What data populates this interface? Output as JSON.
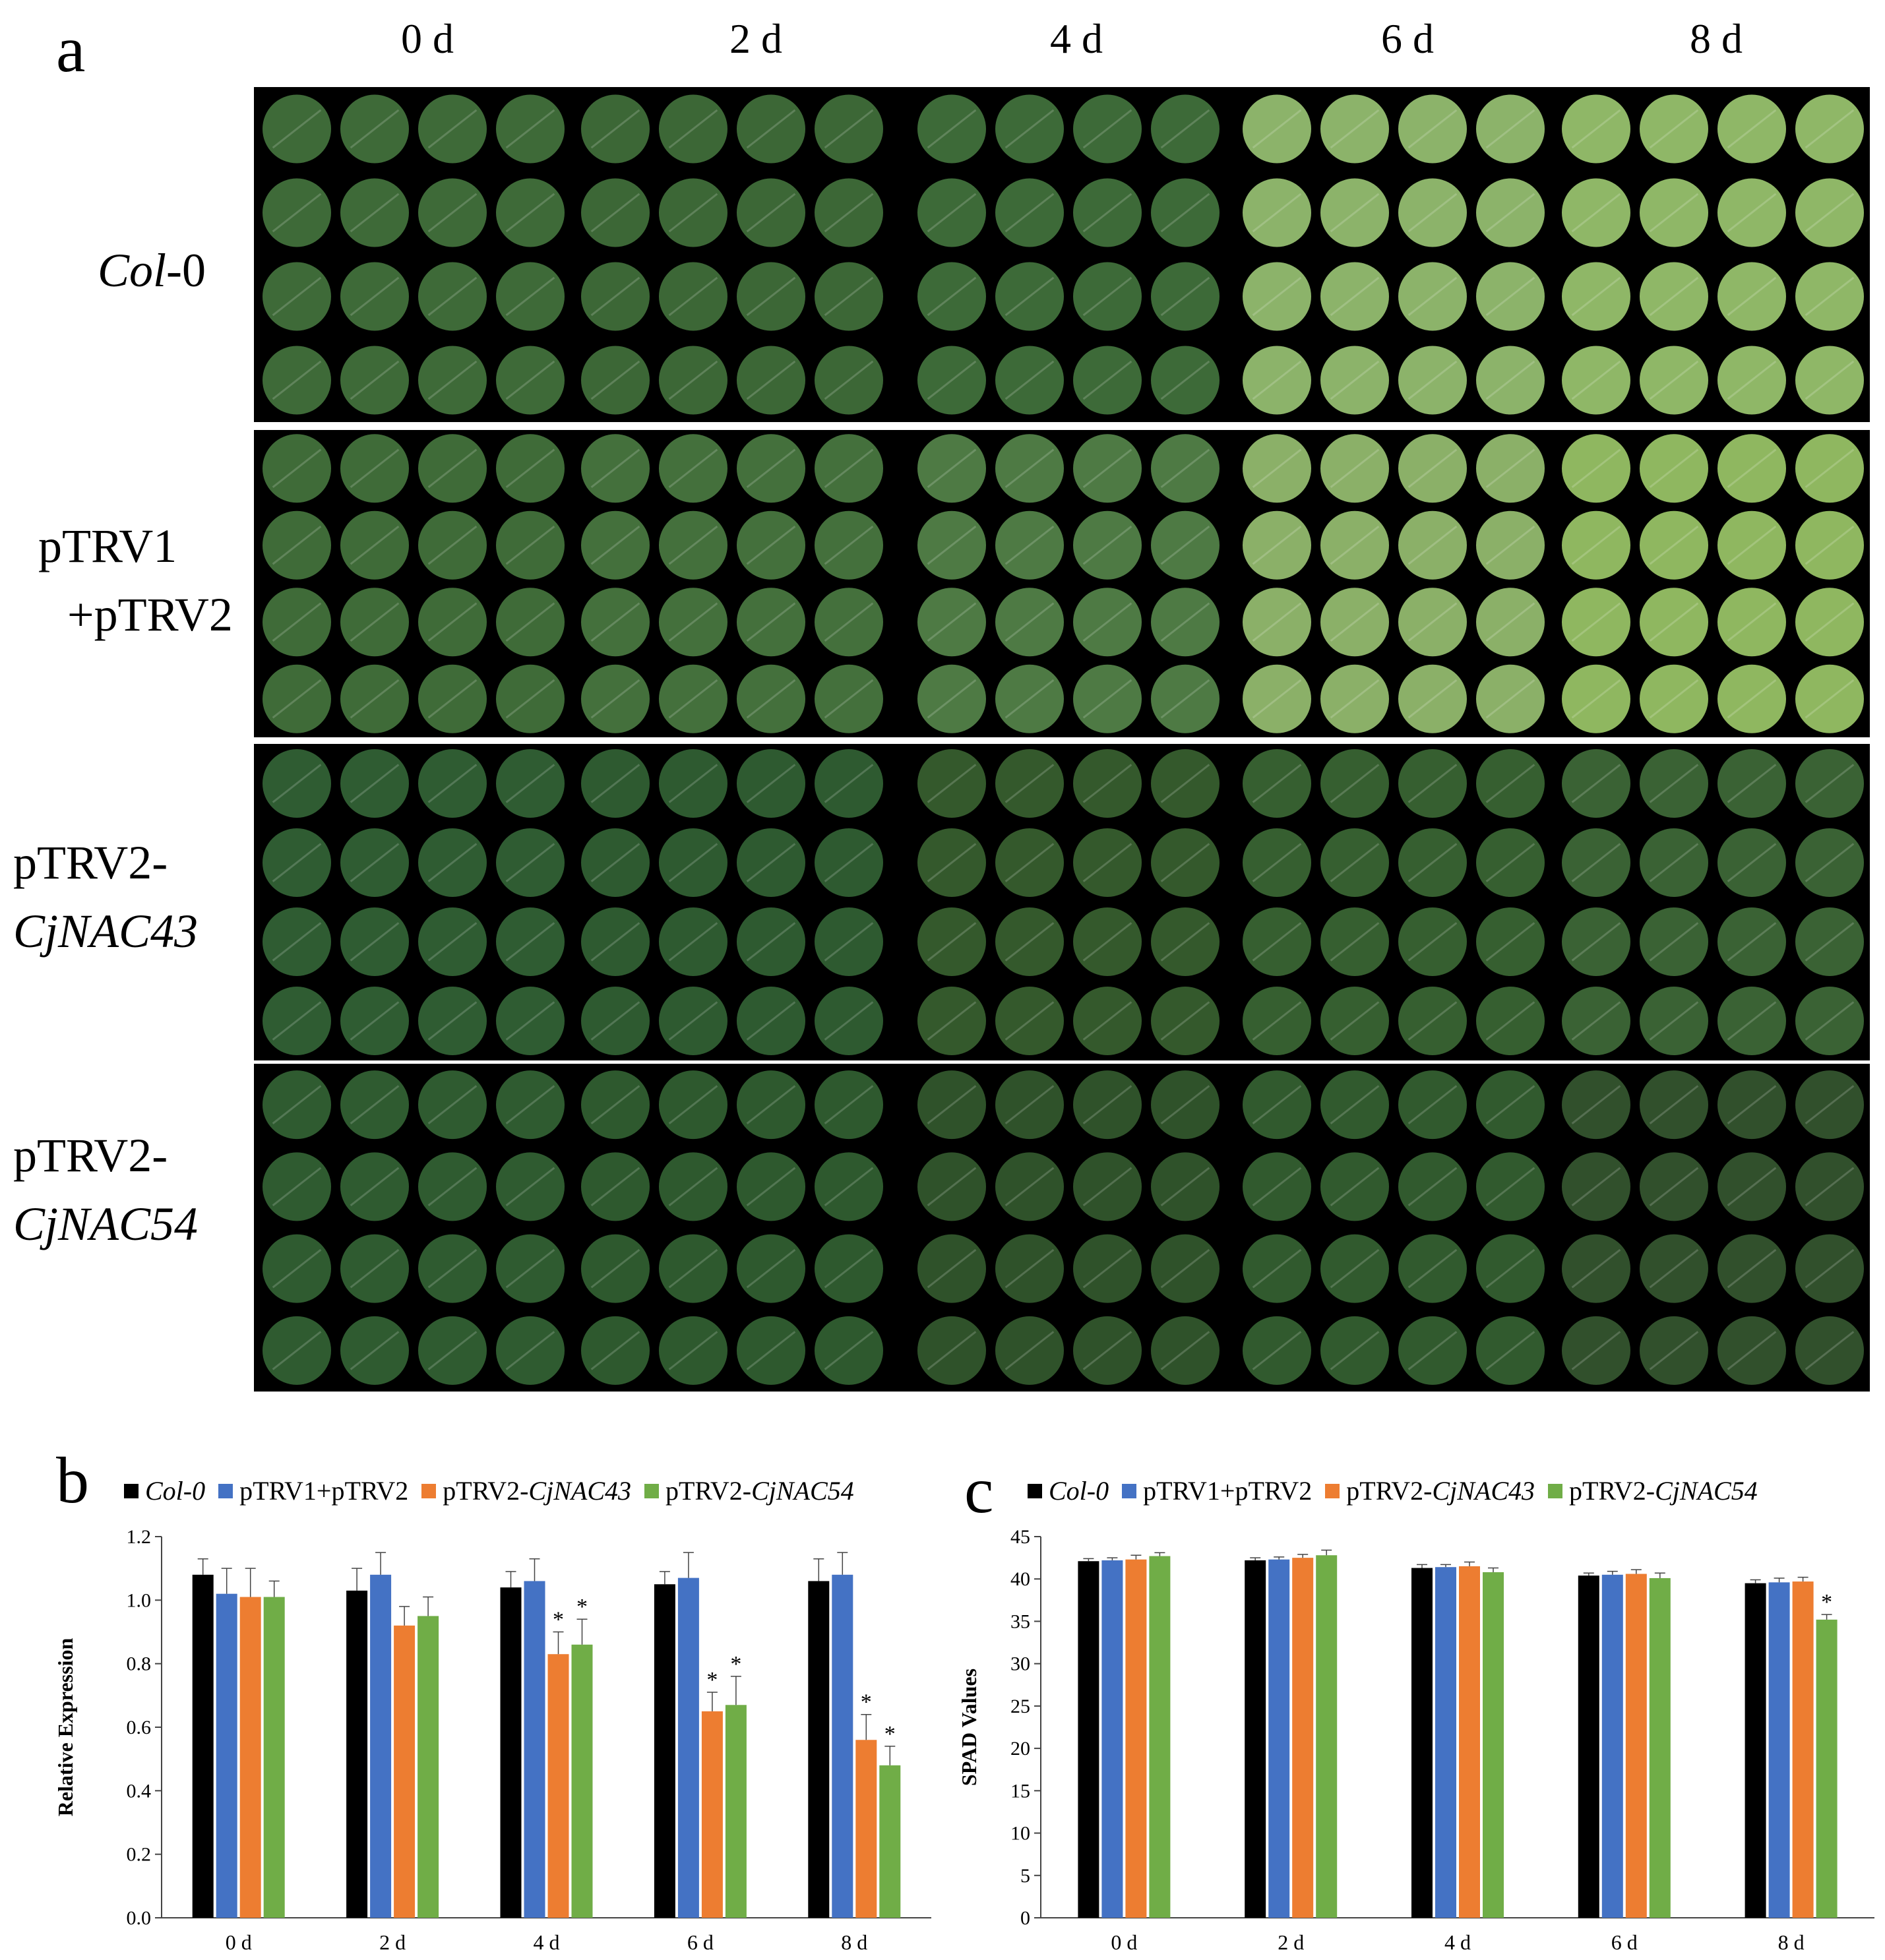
{
  "panel_a": {
    "letter": "a",
    "day_labels": [
      "0 d",
      "2 d",
      "4 d",
      "6 d",
      "8 d"
    ],
    "rows": [
      {
        "parts": [
          {
            "text": "Col",
            "italic": true
          },
          {
            "text": "-0",
            "italic": false
          }
        ]
      },
      {
        "parts": [
          {
            "text": "pTRV1",
            "italic": false
          },
          {
            "text": "\n+pTRV2",
            "italic": false
          }
        ]
      },
      {
        "parts": [
          {
            "text": "pTRV2-",
            "italic": false
          },
          {
            "text": "\nCjNAC43",
            "italic": true
          }
        ]
      },
      {
        "parts": [
          {
            "text": "pTRV2-",
            "italic": false
          },
          {
            "text": "\nCjNAC54",
            "italic": true
          }
        ]
      }
    ],
    "leaf_tint": [
      [
        "#3e6a38",
        "#3c6736",
        "#3d6a38",
        "#8cb36a",
        "#8fb767"
      ],
      [
        "#3f6b38",
        "#44703c",
        "#4e7a44",
        "#8bb068",
        "#8fb760"
      ],
      [
        "#2f5c32",
        "#2e5a30",
        "#34592c",
        "#365f30",
        "#3a6234"
      ],
      [
        "#2f5b30",
        "#2e592e",
        "#2f522a",
        "#315a2e",
        "#31502c"
      ]
    ]
  },
  "legend": {
    "items": [
      {
        "label": "Col-0",
        "italic": true,
        "color": "#000000"
      },
      {
        "label": "pTRV1+pTRV2",
        "italic": false,
        "color": "#4472c4"
      },
      {
        "label_plain": "pTRV2-",
        "label_italic": "CjNAC43",
        "color": "#ed7d31"
      },
      {
        "label_plain": "pTRV2-",
        "label_italic": "CjNAC54",
        "color": "#70ad47"
      }
    ]
  },
  "chart_data": [
    {
      "panel_letter": "b",
      "type": "bar",
      "ylabel": "Relative Expression",
      "xlabel": "",
      "categories": [
        "0 d",
        "2 d",
        "4 d",
        "6 d",
        "8 d"
      ],
      "ylim": [
        0,
        1.2
      ],
      "yticks": [
        "0.0",
        "0.2",
        "0.4",
        "0.6",
        "0.8",
        "1.0",
        "1.2"
      ],
      "series": [
        {
          "name": "Col-0",
          "color": "#000000",
          "values": [
            1.08,
            1.03,
            1.04,
            1.05,
            1.06
          ],
          "errors": [
            0.05,
            0.07,
            0.05,
            0.04,
            0.07
          ]
        },
        {
          "name": "pTRV1+pTRV2",
          "color": "#4472c4",
          "values": [
            1.02,
            1.08,
            1.06,
            1.07,
            1.08
          ],
          "errors": [
            0.08,
            0.07,
            0.07,
            0.08,
            0.07
          ]
        },
        {
          "name": "pTRV2-CjNAC43",
          "color": "#ed7d31",
          "values": [
            1.01,
            0.92,
            0.83,
            0.65,
            0.56
          ],
          "errors": [
            0.09,
            0.06,
            0.07,
            0.06,
            0.08
          ]
        },
        {
          "name": "pTRV2-CjNAC54",
          "color": "#70ad47",
          "values": [
            1.01,
            0.95,
            0.86,
            0.67,
            0.48
          ],
          "errors": [
            0.05,
            0.06,
            0.08,
            0.09,
            0.06
          ]
        }
      ],
      "significance": [
        {
          "series": 2,
          "category": 2,
          "label": "*"
        },
        {
          "series": 3,
          "category": 2,
          "label": "*"
        },
        {
          "series": 2,
          "category": 3,
          "label": "*"
        },
        {
          "series": 3,
          "category": 3,
          "label": "*"
        },
        {
          "series": 2,
          "category": 4,
          "label": "*"
        },
        {
          "series": 3,
          "category": 4,
          "label": "*"
        }
      ]
    },
    {
      "panel_letter": "c",
      "type": "bar",
      "ylabel": "SPAD Values",
      "xlabel": "",
      "categories": [
        "0 d",
        "2 d",
        "4 d",
        "6 d",
        "8 d"
      ],
      "ylim": [
        0,
        45
      ],
      "yticks": [
        "0",
        "5",
        "10",
        "15",
        "20",
        "25",
        "30",
        "35",
        "40",
        "45"
      ],
      "series": [
        {
          "name": "Col-0",
          "color": "#000000",
          "values": [
            42.1,
            42.2,
            41.3,
            40.4,
            39.5
          ],
          "errors": [
            0.3,
            0.3,
            0.4,
            0.3,
            0.4
          ]
        },
        {
          "name": "pTRV1+pTRV2",
          "color": "#4472c4",
          "values": [
            42.2,
            42.3,
            41.4,
            40.5,
            39.6
          ],
          "errors": [
            0.3,
            0.3,
            0.3,
            0.4,
            0.5
          ]
        },
        {
          "name": "pTRV2-CjNAC43",
          "color": "#ed7d31",
          "values": [
            42.3,
            42.5,
            41.5,
            40.6,
            39.7
          ],
          "errors": [
            0.5,
            0.4,
            0.5,
            0.5,
            0.5
          ]
        },
        {
          "name": "pTRV2-CjNAC54",
          "color": "#70ad47",
          "values": [
            42.7,
            42.8,
            40.8,
            40.1,
            35.2
          ],
          "errors": [
            0.4,
            0.6,
            0.5,
            0.6,
            0.6
          ]
        }
      ],
      "significance": [
        {
          "series": 3,
          "category": 4,
          "label": "*"
        }
      ]
    }
  ]
}
